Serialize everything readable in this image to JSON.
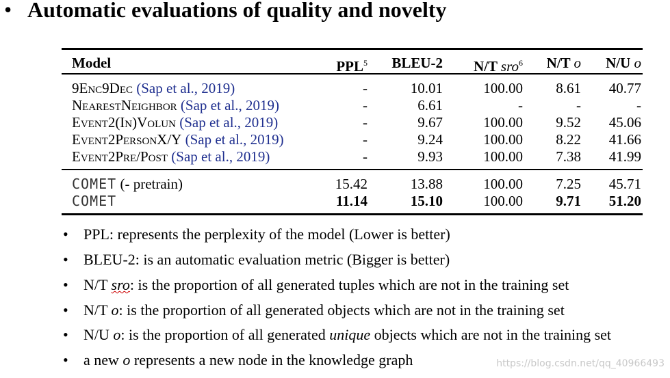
{
  "title": "Automatic evaluations of quality and novelty",
  "table": {
    "header": [
      {
        "text": "Model"
      },
      {
        "text": "PPL",
        "note": "5"
      },
      {
        "text": "BLEU-2"
      },
      {
        "text": "N/T",
        "var": "sro",
        "note": "6"
      },
      {
        "text": "N/T",
        "var": "o"
      },
      {
        "text": "N/U",
        "var": "o"
      }
    ],
    "groups": [
      [
        {
          "model": "9Enc9Dec",
          "cite": "(Sap et al., 2019)",
          "cells": [
            "-",
            "10.01",
            "100.00",
            "8.61",
            "40.77"
          ]
        },
        {
          "model": "NearestNeighbor",
          "cite": "(Sap et al., 2019)",
          "cells": [
            "-",
            "6.61",
            "-",
            "-",
            "-"
          ]
        },
        {
          "model": "Event2(In)Volun",
          "cite": "(Sap et al., 2019)",
          "cells": [
            "-",
            "9.67",
            "100.00",
            "9.52",
            "45.06"
          ]
        },
        {
          "model": "Event2PersonX/Y",
          "cite": "(Sap et al., 2019)",
          "cells": [
            "-",
            "9.24",
            "100.00",
            "8.22",
            "41.66"
          ]
        },
        {
          "model": "Event2Pre/Post",
          "cite": "(Sap et al., 2019)",
          "cells": [
            "-",
            "9.93",
            "100.00",
            "7.38",
            "41.99"
          ]
        }
      ],
      [
        {
          "model": "COMET",
          "cite": "(- pretrain)",
          "comet": true,
          "cells": [
            "15.42",
            "13.88",
            "100.00",
            "7.25",
            "45.71"
          ]
        },
        {
          "model": "COMET",
          "comet": true,
          "bold": [
            0,
            1,
            3,
            4
          ],
          "cells": [
            "11.14",
            "15.10",
            "100.00",
            "9.71",
            "51.20"
          ]
        }
      ]
    ]
  },
  "bullets": [
    [
      {
        "text": "PPL: represents the perplexity of the model (Lower is better)"
      }
    ],
    [
      {
        "text": "BLEU-2: is an automatic evaluation metric (Bigger is better)"
      }
    ],
    [
      {
        "text": "N/T "
      },
      {
        "text": "sro",
        "italic": true,
        "squiggle": true
      },
      {
        "text": ": is the proportion of all generated tuples which are not in the training set"
      }
    ],
    [
      {
        "text": "N/T "
      },
      {
        "text": "o",
        "italic": true
      },
      {
        "text": ": is the proportion of all generated objects which are not in the training set"
      }
    ],
    [
      {
        "text": "N/U "
      },
      {
        "text": "o",
        "italic": true
      },
      {
        "text": ": is the proportion of all generated "
      },
      {
        "text": "unique",
        "italic": true
      },
      {
        "text": " objects which are not in the training set"
      }
    ],
    [
      {
        "text": "a new "
      },
      {
        "text": "o",
        "italic": true
      },
      {
        "text": " represents a new node in the knowledge graph"
      }
    ]
  ],
  "watermark": "https://blog.csdn.net/qq_40966493"
}
